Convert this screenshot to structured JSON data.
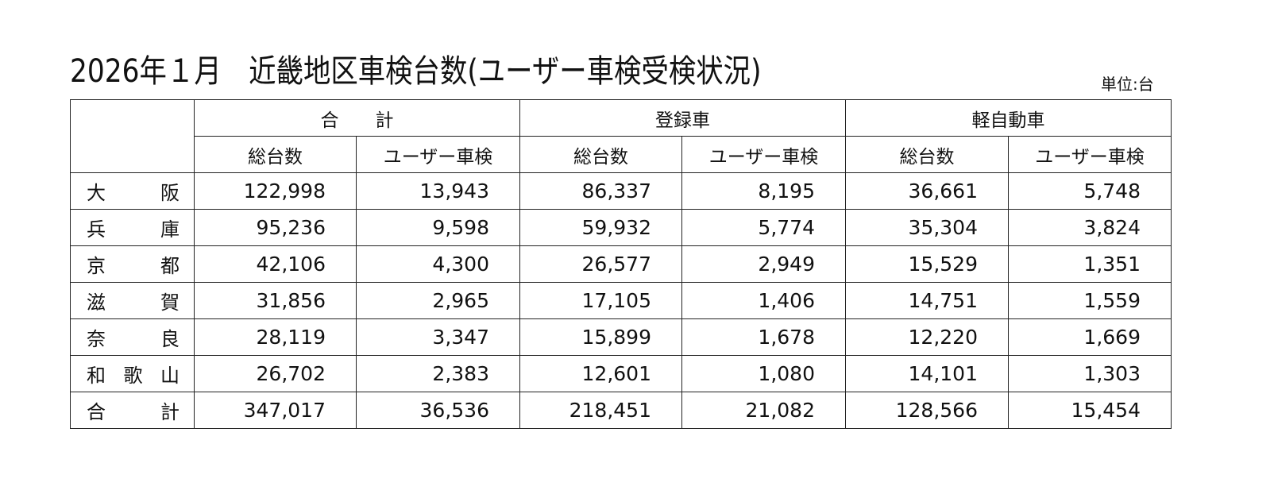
{
  "title": "2026年１月　近畿地区車検台数(ユーザー車検受検状況)",
  "unit": "単位:台",
  "groups": [
    "合　　計",
    "登録車",
    "軽自動車"
  ],
  "subheaders": [
    "総台数",
    "ユーザー車検"
  ],
  "rows": [
    {
      "label": [
        "大",
        "阪"
      ],
      "values": [
        "122,998",
        "13,943",
        "86,337",
        "8,195",
        "36,661",
        "5,748"
      ]
    },
    {
      "label": [
        "兵",
        "庫"
      ],
      "values": [
        "95,236",
        "9,598",
        "59,932",
        "5,774",
        "35,304",
        "3,824"
      ]
    },
    {
      "label": [
        "京",
        "都"
      ],
      "values": [
        "42,106",
        "4,300",
        "26,577",
        "2,949",
        "15,529",
        "1,351"
      ]
    },
    {
      "label": [
        "滋",
        "賀"
      ],
      "values": [
        "31,856",
        "2,965",
        "17,105",
        "1,406",
        "14,751",
        "1,559"
      ]
    },
    {
      "label": [
        "奈",
        "良"
      ],
      "values": [
        "28,119",
        "3,347",
        "15,899",
        "1,678",
        "12,220",
        "1,669"
      ]
    },
    {
      "label": [
        "和",
        "歌",
        "山"
      ],
      "values": [
        "26,702",
        "2,383",
        "12,601",
        "1,080",
        "14,101",
        "1,303"
      ]
    },
    {
      "label": [
        "合",
        "計"
      ],
      "values": [
        "347,017",
        "36,536",
        "218,451",
        "21,082",
        "128,566",
        "15,454"
      ]
    }
  ]
}
